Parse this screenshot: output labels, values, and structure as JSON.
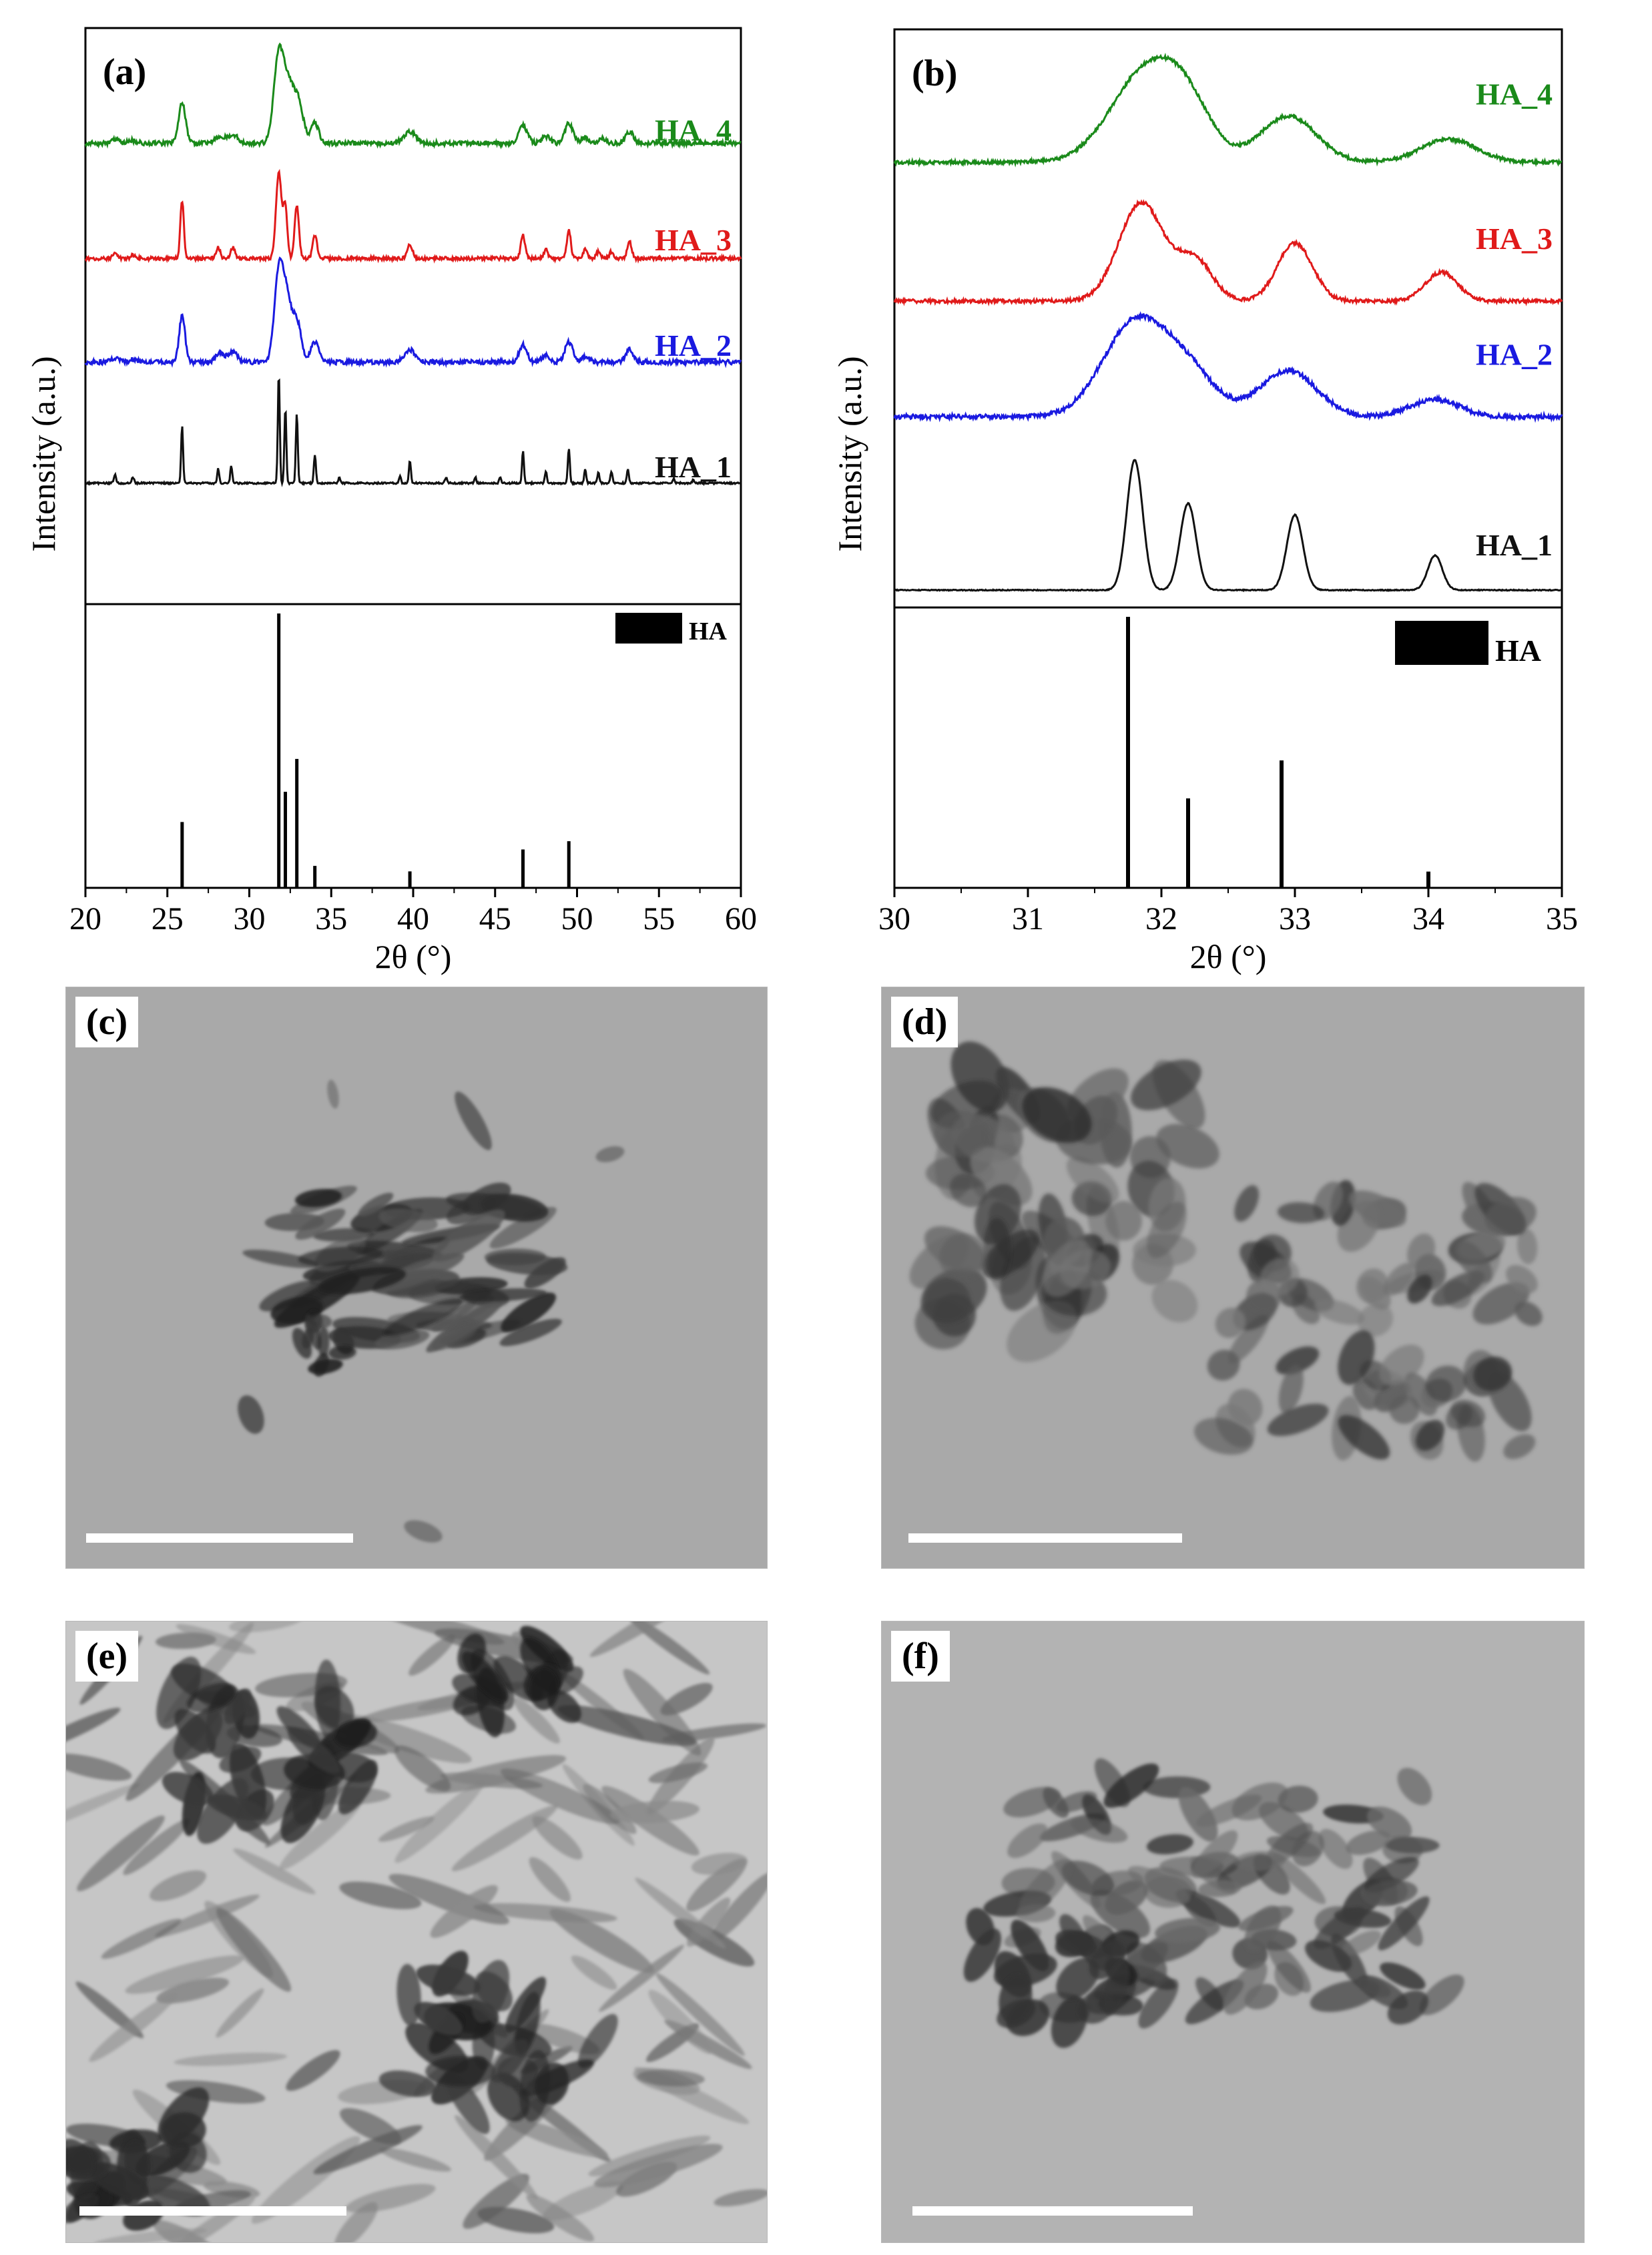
{
  "chart_data": [
    {
      "id": "a",
      "type": "line",
      "panel_label": "(a)",
      "xlabel": "2θ (°)",
      "ylabel": "Intensity (a.u.)",
      "xlim": [
        20,
        60
      ],
      "xticks": [
        20,
        25,
        30,
        35,
        40,
        45,
        50,
        55,
        60
      ],
      "series": [
        {
          "name": "HA_4",
          "color": "#1a8a1a",
          "baseline": 0.2,
          "noise": 0.004,
          "peaks": [
            [
              21.8,
              0.006,
              0.4
            ],
            [
              22.9,
              0.005,
              0.4
            ],
            [
              25.9,
              0.07,
              0.35
            ],
            [
              28.2,
              0.012,
              0.5
            ],
            [
              29.0,
              0.015,
              0.5
            ],
            [
              31.8,
              0.155,
              0.5
            ],
            [
              32.4,
              0.09,
              0.5
            ],
            [
              33.0,
              0.07,
              0.5
            ],
            [
              34.0,
              0.035,
              0.4
            ],
            [
              39.8,
              0.02,
              0.6
            ],
            [
              46.7,
              0.03,
              0.45
            ],
            [
              48.1,
              0.012,
              0.4
            ],
            [
              49.5,
              0.035,
              0.4
            ],
            [
              50.5,
              0.01,
              0.4
            ],
            [
              51.5,
              0.008,
              0.4
            ],
            [
              53.2,
              0.02,
              0.4
            ]
          ]
        },
        {
          "name": "HA_3",
          "color": "#e01a1a",
          "baseline": 0.4,
          "noise": 0.003,
          "peaks": [
            [
              21.8,
              0.008,
              0.25
            ],
            [
              22.9,
              0.006,
              0.25
            ],
            [
              25.9,
              0.1,
              0.18
            ],
            [
              28.1,
              0.02,
              0.2
            ],
            [
              29.0,
              0.02,
              0.2
            ],
            [
              31.8,
              0.15,
              0.28
            ],
            [
              32.2,
              0.09,
              0.2
            ],
            [
              32.9,
              0.09,
              0.22
            ],
            [
              34.0,
              0.04,
              0.22
            ],
            [
              39.8,
              0.025,
              0.25
            ],
            [
              46.7,
              0.04,
              0.22
            ],
            [
              48.1,
              0.015,
              0.2
            ],
            [
              49.5,
              0.05,
              0.2
            ],
            [
              50.5,
              0.015,
              0.2
            ],
            [
              51.3,
              0.012,
              0.2
            ],
            [
              52.1,
              0.012,
              0.2
            ],
            [
              53.2,
              0.03,
              0.22
            ]
          ]
        },
        {
          "name": "HA_2",
          "color": "#1a1ae0",
          "baseline": 0.58,
          "noise": 0.004,
          "peaks": [
            [
              21.8,
              0.006,
              0.4
            ],
            [
              22.9,
              0.005,
              0.4
            ],
            [
              25.9,
              0.08,
              0.3
            ],
            [
              28.2,
              0.015,
              0.45
            ],
            [
              29.0,
              0.018,
              0.45
            ],
            [
              31.8,
              0.155,
              0.45
            ],
            [
              32.3,
              0.1,
              0.45
            ],
            [
              32.9,
              0.07,
              0.45
            ],
            [
              34.0,
              0.035,
              0.4
            ],
            [
              39.8,
              0.022,
              0.55
            ],
            [
              46.7,
              0.03,
              0.4
            ],
            [
              48.1,
              0.012,
              0.4
            ],
            [
              49.5,
              0.035,
              0.4
            ],
            [
              50.5,
              0.01,
              0.4
            ],
            [
              53.2,
              0.022,
              0.4
            ]
          ]
        },
        {
          "name": "HA_1",
          "color": "#111111",
          "baseline": 0.79,
          "noise": 0.0015,
          "peaks": [
            [
              21.8,
              0.015,
              0.12
            ],
            [
              22.9,
              0.01,
              0.12
            ],
            [
              25.9,
              0.1,
              0.1
            ],
            [
              28.1,
              0.025,
              0.1
            ],
            [
              28.9,
              0.03,
              0.1
            ],
            [
              31.8,
              0.19,
              0.1
            ],
            [
              32.2,
              0.13,
              0.1
            ],
            [
              32.9,
              0.12,
              0.1
            ],
            [
              34.0,
              0.05,
              0.1
            ],
            [
              35.5,
              0.01,
              0.1
            ],
            [
              39.2,
              0.012,
              0.1
            ],
            [
              39.8,
              0.04,
              0.1
            ],
            [
              42.0,
              0.01,
              0.1
            ],
            [
              43.8,
              0.01,
              0.1
            ],
            [
              45.3,
              0.01,
              0.1
            ],
            [
              46.7,
              0.055,
              0.1
            ],
            [
              48.1,
              0.02,
              0.1
            ],
            [
              49.5,
              0.06,
              0.1
            ],
            [
              50.5,
              0.025,
              0.1
            ],
            [
              51.3,
              0.02,
              0.1
            ],
            [
              52.1,
              0.02,
              0.1
            ],
            [
              53.1,
              0.025,
              0.1
            ],
            [
              55.9,
              0.008,
              0.1
            ],
            [
              57.1,
              0.006,
              0.1
            ]
          ]
        }
      ],
      "reference": {
        "name": "HA",
        "x": [
          25.9,
          31.8,
          32.2,
          32.9,
          34.0,
          39.8,
          46.7,
          49.5
        ],
        "values": [
          0.24,
          1.0,
          0.35,
          0.47,
          0.08,
          0.06,
          0.14,
          0.17
        ]
      }
    },
    {
      "id": "b",
      "type": "line",
      "panel_label": "(b)",
      "xlabel": "2θ (°)",
      "ylabel": "Intensity (a.u.)",
      "xlim": [
        30,
        35
      ],
      "xticks": [
        30,
        31,
        32,
        33,
        34,
        35
      ],
      "series": [
        {
          "name": "HA_4",
          "color": "#1a8a1a",
          "baseline": 0.23,
          "noise": 0.003,
          "peaks": [
            [
              31.9,
              0.16,
              0.45
            ],
            [
              32.2,
              0.06,
              0.3
            ],
            [
              32.95,
              0.08,
              0.35
            ],
            [
              34.15,
              0.04,
              0.35
            ]
          ]
        },
        {
          "name": "HA_3",
          "color": "#e01a1a",
          "baseline": 0.47,
          "noise": 0.003,
          "peaks": [
            [
              31.85,
              0.17,
              0.28
            ],
            [
              32.25,
              0.07,
              0.22
            ],
            [
              33.0,
              0.1,
              0.22
            ],
            [
              34.1,
              0.05,
              0.2
            ]
          ]
        },
        {
          "name": "HA_2",
          "color": "#1a1ae0",
          "baseline": 0.67,
          "noise": 0.004,
          "peaks": [
            [
              31.8,
              0.16,
              0.4
            ],
            [
              32.2,
              0.07,
              0.35
            ],
            [
              32.95,
              0.08,
              0.35
            ],
            [
              34.05,
              0.03,
              0.3
            ]
          ]
        },
        {
          "name": "HA_1",
          "color": "#111111",
          "baseline": 0.97,
          "noise": 0.0008,
          "peaks": [
            [
              31.8,
              0.225,
              0.1
            ],
            [
              32.2,
              0.15,
              0.1
            ],
            [
              33.0,
              0.13,
              0.1
            ],
            [
              34.05,
              0.06,
              0.09
            ]
          ]
        }
      ],
      "reference": {
        "name": "HA",
        "x": [
          31.75,
          32.2,
          32.9,
          34.0
        ],
        "values": [
          1.0,
          0.33,
          0.47,
          0.06
        ]
      }
    }
  ],
  "images": [
    {
      "id": "c",
      "label": "(c)",
      "style": "sparse"
    },
    {
      "id": "d",
      "label": "(d)",
      "style": "blobby"
    },
    {
      "id": "e",
      "label": "(e)",
      "style": "needles"
    },
    {
      "id": "f",
      "label": "(f)",
      "style": "cluster"
    }
  ]
}
